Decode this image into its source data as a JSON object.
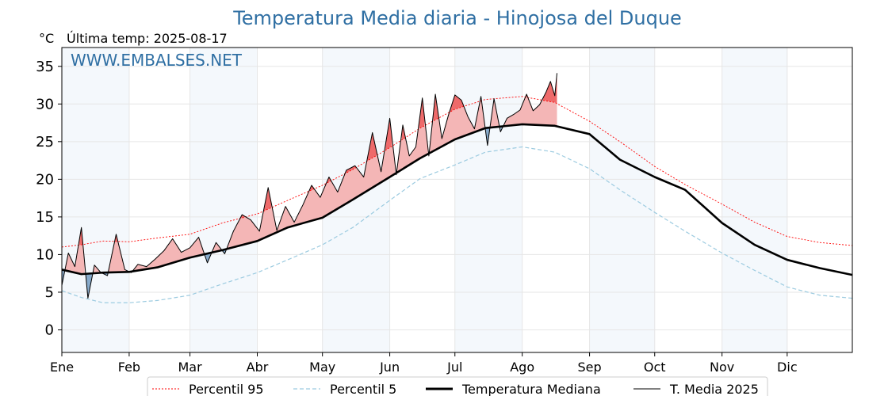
{
  "chart_data": {
    "type": "line",
    "title": "Temperatura Media diaria - Hinojosa del Duque",
    "unit_label": "°C",
    "last_temp_label": "Última temp: 2025-08-17",
    "watermark": "WWW.EMBALSES.NET",
    "ylim": [
      -3,
      37.5
    ],
    "yticks": [
      0,
      5,
      10,
      15,
      20,
      25,
      30,
      35
    ],
    "xlim": [
      1,
      365
    ],
    "months": [
      "Ene",
      "Feb",
      "Mar",
      "Abr",
      "May",
      "Jun",
      "Jul",
      "Ago",
      "Sep",
      "Oct",
      "Nov",
      "Dic"
    ],
    "month_start_days": [
      1,
      32,
      60,
      91,
      121,
      152,
      182,
      213,
      244,
      274,
      305,
      335
    ],
    "grid": true,
    "legend_position": "bottom-center",
    "series": [
      {
        "name": "Percentil 95",
        "color": "#ff0000",
        "style": "dotted",
        "x": [
          1,
          10,
          20,
          32,
          45,
          60,
          75,
          91,
          105,
          121,
          135,
          152,
          166,
          182,
          196,
          213,
          228,
          244,
          258,
          274,
          288,
          305,
          320,
          335,
          350,
          365
        ],
        "y": [
          11.0,
          11.3,
          11.8,
          11.7,
          12.2,
          12.7,
          14.2,
          15.4,
          17.2,
          19.2,
          21.3,
          24.2,
          26.8,
          29.3,
          30.6,
          31.0,
          30.2,
          27.7,
          25.0,
          21.7,
          19.3,
          16.7,
          14.3,
          12.4,
          11.6,
          11.2
        ]
      },
      {
        "name": "Percentil 5",
        "color": "#9ccbe0",
        "style": "dashed",
        "x": [
          1,
          10,
          20,
          32,
          45,
          60,
          75,
          91,
          105,
          121,
          135,
          152,
          166,
          182,
          196,
          213,
          228,
          244,
          258,
          274,
          288,
          305,
          320,
          335,
          350,
          365
        ],
        "y": [
          5.2,
          4.3,
          3.6,
          3.6,
          3.9,
          4.6,
          6.1,
          7.6,
          9.3,
          11.3,
          13.6,
          17.2,
          20.1,
          21.9,
          23.6,
          24.3,
          23.6,
          21.4,
          18.6,
          15.6,
          13.1,
          10.2,
          7.9,
          5.7,
          4.6,
          4.2
        ]
      },
      {
        "name": "Temperatura Mediana",
        "color": "#000000",
        "style": "solid-thick",
        "x": [
          1,
          10,
          20,
          32,
          45,
          60,
          75,
          91,
          105,
          121,
          135,
          152,
          166,
          182,
          196,
          213,
          228,
          244,
          258,
          274,
          288,
          305,
          320,
          335,
          350,
          365
        ],
        "y": [
          8.0,
          7.4,
          7.6,
          7.7,
          8.3,
          9.6,
          10.6,
          11.8,
          13.6,
          14.9,
          17.3,
          20.3,
          22.8,
          25.3,
          26.8,
          27.3,
          27.1,
          26.0,
          22.6,
          20.3,
          18.6,
          14.2,
          11.3,
          9.3,
          8.2,
          7.3
        ]
      },
      {
        "name": "T. Media 2025",
        "color": "#000000",
        "style": "solid-thin",
        "x": [
          1,
          4,
          7,
          10,
          13,
          16,
          19,
          22,
          26,
          30,
          33,
          36,
          40,
          44,
          48,
          52,
          56,
          60,
          64,
          68,
          72,
          76,
          80,
          84,
          88,
          92,
          96,
          100,
          104,
          108,
          112,
          116,
          120,
          124,
          128,
          132,
          136,
          140,
          144,
          148,
          152,
          155,
          158,
          161,
          164,
          167,
          170,
          173,
          176,
          179,
          182,
          185,
          188,
          191,
          194,
          197,
          200,
          203,
          206,
          209,
          212,
          215,
          218,
          221,
          224,
          226,
          228,
          229
        ],
        "y": [
          5.9,
          10.2,
          8.4,
          13.6,
          4.2,
          8.6,
          7.6,
          7.2,
          12.7,
          8.0,
          7.6,
          8.7,
          8.4,
          9.4,
          10.5,
          12.1,
          10.3,
          10.9,
          12.3,
          8.9,
          11.6,
          10.1,
          13.1,
          15.3,
          14.6,
          13.1,
          18.9,
          13.2,
          16.4,
          14.3,
          16.6,
          19.2,
          17.6,
          20.3,
          18.3,
          21.2,
          21.8,
          20.3,
          26.2,
          21.0,
          28.1,
          20.6,
          27.2,
          23.1,
          24.3,
          30.8,
          23.1,
          31.3,
          25.4,
          28.5,
          31.2,
          30.5,
          28.3,
          26.7,
          31.0,
          24.5,
          30.7,
          26.3,
          28.1,
          28.6,
          29.2,
          31.3,
          29.1,
          29.9,
          31.6,
          33.0,
          31.1,
          34.1
        ]
      }
    ]
  }
}
